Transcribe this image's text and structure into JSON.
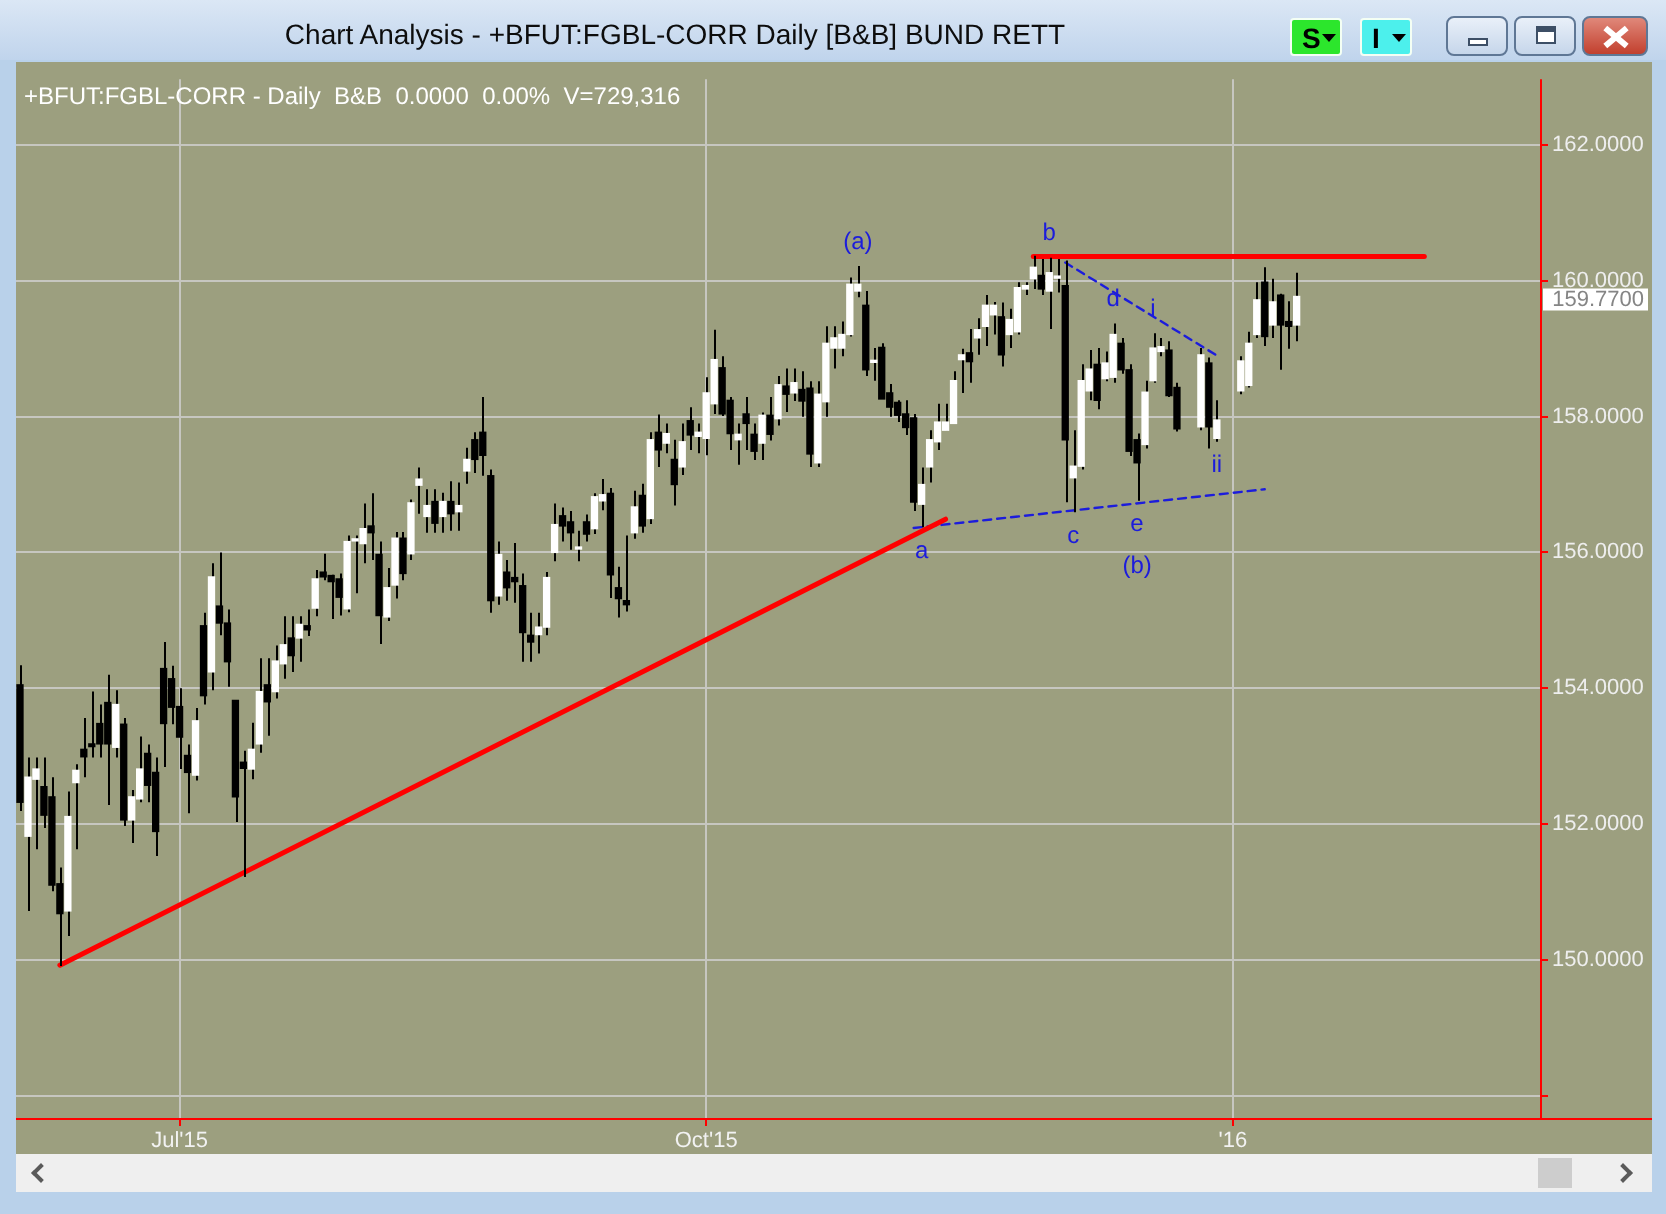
{
  "chart_data": {
    "type": "candlestick",
    "title": "Chart Analysis - +BFUT:FGBL-CORR Daily [B&B] BUND RETT",
    "subtitle": "+BFUT:FGBL-CORR - Daily  B&B  0.0000  0.00%  V=729,316",
    "categories": [
      null,
      null,
      null,
      null,
      null,
      null,
      null,
      null,
      null,
      null,
      null,
      null,
      null,
      null,
      null,
      null,
      null,
      null,
      null,
      null,
      "Jul'15",
      null,
      null,
      null,
      null,
      null,
      null,
      null,
      null,
      null,
      null,
      null,
      null,
      null,
      null,
      null,
      null,
      null,
      null,
      null,
      null,
      null,
      null,
      null,
      null,
      null,
      null,
      null,
      null,
      null,
      null,
      null,
      null,
      null,
      null,
      null,
      null,
      null,
      null,
      null,
      null,
      null,
      null,
      null,
      null,
      null,
      null,
      null,
      null,
      null,
      null,
      null,
      null,
      null,
      null,
      null,
      null,
      null,
      null,
      null,
      null,
      null,
      null,
      null,
      null,
      null,
      "Oct'15",
      null,
      null,
      null,
      null,
      null,
      null,
      null,
      null,
      null,
      null,
      null,
      null,
      null,
      null,
      null,
      null,
      null,
      null,
      null,
      null,
      null,
      null,
      null,
      null,
      null,
      null,
      null,
      null,
      null,
      null,
      null,
      null,
      null,
      null,
      null,
      null,
      null,
      null,
      null,
      null,
      null,
      null,
      null,
      null,
      null,
      null,
      null,
      null,
      null,
      null,
      null,
      null,
      null,
      null,
      null,
      null,
      null,
      null,
      null,
      null,
      null,
      null,
      null,
      null,
      null,
      "'16",
      null,
      null,
      null,
      null,
      null,
      null,
      null,
      null,
      null,
      null,
      null,
      null,
      null,
      null,
      null,
      null,
      null,
      null,
      null,
      null,
      null,
      null,
      null,
      null,
      null,
      null,
      null,
      null,
      null,
      null,
      null,
      null,
      null,
      null,
      null,
      null,
      null,
      null
    ],
    "ohlc": [
      [
        154.05,
        154.34,
        152.19,
        152.32
      ],
      [
        151.82,
        152.98,
        150.72,
        152.69
      ],
      [
        152.66,
        152.98,
        151.63,
        152.81
      ],
      [
        152.55,
        152.98,
        151.94,
        152.13
      ],
      [
        152.4,
        152.69,
        151.01,
        151.1
      ],
      [
        151.12,
        151.36,
        149.91,
        150.68
      ],
      [
        150.72,
        152.48,
        150.35,
        152.11
      ],
      [
        152.61,
        152.88,
        151.63,
        152.79
      ],
      [
        153.1,
        153.56,
        152.69,
        152.99
      ],
      [
        153.18,
        153.95,
        152.98,
        153.14
      ],
      [
        153.48,
        153.76,
        152.98,
        153.18
      ],
      [
        153.79,
        154.2,
        152.28,
        153.18
      ],
      [
        153.13,
        153.97,
        152.98,
        153.76
      ],
      [
        153.47,
        153.56,
        151.97,
        152.06
      ],
      [
        152.06,
        152.5,
        151.72,
        152.4
      ],
      [
        152.37,
        153.29,
        152.32,
        152.81
      ],
      [
        153.04,
        153.17,
        152.32,
        152.57
      ],
      [
        152.76,
        152.98,
        151.53,
        151.89
      ],
      [
        154.29,
        154.68,
        152.84,
        153.48
      ],
      [
        154.14,
        154.33,
        153.47,
        153.72
      ],
      [
        153.73,
        154.0,
        152.81,
        153.28
      ],
      [
        153.01,
        153.17,
        152.16,
        152.76
      ],
      [
        152.72,
        153.71,
        152.64,
        153.52
      ],
      [
        154.92,
        155.11,
        153.76,
        153.89
      ],
      [
        154.24,
        155.84,
        153.97,
        155.64
      ],
      [
        155.21,
        156.0,
        154.78,
        154.96
      ],
      [
        154.96,
        155.16,
        154.02,
        154.39
      ],
      [
        153.82,
        153.82,
        152.03,
        152.4
      ],
      [
        152.91,
        153.08,
        151.22,
        152.82
      ],
      [
        152.81,
        153.49,
        152.66,
        153.1
      ],
      [
        153.18,
        154.44,
        153.05,
        153.95
      ],
      [
        154.05,
        154.44,
        153.3,
        153.8
      ],
      [
        153.95,
        154.63,
        153.85,
        154.4
      ],
      [
        154.36,
        155.06,
        154.14,
        154.64
      ],
      [
        154.74,
        155.06,
        154.24,
        154.48
      ],
      [
        154.74,
        155.06,
        154.39,
        154.94
      ],
      [
        154.92,
        155.16,
        154.77,
        154.86
      ],
      [
        155.18,
        155.74,
        155.06,
        155.61
      ],
      [
        155.71,
        155.98,
        155.59,
        155.64
      ],
      [
        155.66,
        155.67,
        155.02,
        155.57
      ],
      [
        155.61,
        155.69,
        155.07,
        155.34
      ],
      [
        155.17,
        156.25,
        155.12,
        156.16
      ],
      [
        156.17,
        156.25,
        155.4,
        156.18
      ],
      [
        156.13,
        156.72,
        155.84,
        156.35
      ],
      [
        156.39,
        156.87,
        155.89,
        156.29
      ],
      [
        155.97,
        156.16,
        154.65,
        155.07
      ],
      [
        155.05,
        155.77,
        154.99,
        155.48
      ],
      [
        155.52,
        156.3,
        155.32,
        156.21
      ],
      [
        156.21,
        156.3,
        155.59,
        155.69
      ],
      [
        155.98,
        156.78,
        155.89,
        156.73
      ],
      [
        156.99,
        157.25,
        156.57,
        157.08
      ],
      [
        156.53,
        156.93,
        156.29,
        156.69
      ],
      [
        156.75,
        156.93,
        156.29,
        156.43
      ],
      [
        156.53,
        156.88,
        156.29,
        156.75
      ],
      [
        156.75,
        157.05,
        156.32,
        156.57
      ],
      [
        156.6,
        157.03,
        156.32,
        156.69
      ],
      [
        157.2,
        157.54,
        157.01,
        157.37
      ],
      [
        157.66,
        157.77,
        157.17,
        157.37
      ],
      [
        157.77,
        158.29,
        157.13,
        157.43
      ],
      [
        157.13,
        157.22,
        155.11,
        155.29
      ],
      [
        155.36,
        156.16,
        155.23,
        155.97
      ],
      [
        155.71,
        155.89,
        155.29,
        155.48
      ],
      [
        155.63,
        156.14,
        155.26,
        155.57
      ],
      [
        155.51,
        155.69,
        154.39,
        154.82
      ],
      [
        154.78,
        155.11,
        154.39,
        154.68
      ],
      [
        154.79,
        155.11,
        154.51,
        154.9
      ],
      [
        154.9,
        155.71,
        154.78,
        155.63
      ],
      [
        156.0,
        156.72,
        155.87,
        156.41
      ],
      [
        156.54,
        156.66,
        156.16,
        156.39
      ],
      [
        156.45,
        156.61,
        156.04,
        156.29
      ],
      [
        156.05,
        156.32,
        155.87,
        156.07
      ],
      [
        156.45,
        156.56,
        156.16,
        156.27
      ],
      [
        156.35,
        156.87,
        156.27,
        156.82
      ],
      [
        156.76,
        157.08,
        156.62,
        156.85
      ],
      [
        156.87,
        156.95,
        155.33,
        155.67
      ],
      [
        155.48,
        155.79,
        155.04,
        155.32
      ],
      [
        155.29,
        156.25,
        155.13,
        155.23
      ],
      [
        156.29,
        156.91,
        156.2,
        156.67
      ],
      [
        156.84,
        157.01,
        156.29,
        156.39
      ],
      [
        156.5,
        157.77,
        156.42,
        157.66
      ],
      [
        157.77,
        158.03,
        157.26,
        157.51
      ],
      [
        157.61,
        157.9,
        157.46,
        157.75
      ],
      [
        157.37,
        157.66,
        156.69,
        157.0
      ],
      [
        157.26,
        157.9,
        157.14,
        157.63
      ],
      [
        157.94,
        158.14,
        157.51,
        157.73
      ],
      [
        157.71,
        157.9,
        157.46,
        157.77
      ],
      [
        157.68,
        158.58,
        157.43,
        158.35
      ],
      [
        158.19,
        159.28,
        158.04,
        158.84
      ],
      [
        158.72,
        158.89,
        158.01,
        158.04
      ],
      [
        158.24,
        158.29,
        157.51,
        157.75
      ],
      [
        157.66,
        157.9,
        157.29,
        157.74
      ],
      [
        158.04,
        158.29,
        157.51,
        157.9
      ],
      [
        157.74,
        157.9,
        157.36,
        157.49
      ],
      [
        157.61,
        158.06,
        157.36,
        158.02
      ],
      [
        158.02,
        158.29,
        157.65,
        157.74
      ],
      [
        157.97,
        158.6,
        157.87,
        158.47
      ],
      [
        158.45,
        158.71,
        158.07,
        158.33
      ],
      [
        158.35,
        158.71,
        158.23,
        158.5
      ],
      [
        158.4,
        158.67,
        158.0,
        158.23
      ],
      [
        158.42,
        158.52,
        157.26,
        157.45
      ],
      [
        157.32,
        158.52,
        157.26,
        158.33
      ],
      [
        158.22,
        159.33,
        158.0,
        159.08
      ],
      [
        159.01,
        159.33,
        158.71,
        159.16
      ],
      [
        159.01,
        159.4,
        158.89,
        159.21
      ],
      [
        159.21,
        160.05,
        159.18,
        159.95
      ],
      [
        159.85,
        160.22,
        159.76,
        159.95
      ],
      [
        159.64,
        159.85,
        158.6,
        158.69
      ],
      [
        158.8,
        159.01,
        158.53,
        158.82
      ],
      [
        159.02,
        159.08,
        158.26,
        158.26
      ],
      [
        158.35,
        158.48,
        158.0,
        158.14
      ],
      [
        158.21,
        158.24,
        157.92,
        158.02
      ],
      [
        158.04,
        158.24,
        157.73,
        157.84
      ],
      [
        157.98,
        158.04,
        156.61,
        156.74
      ],
      [
        156.71,
        157.25,
        156.37,
        157.0
      ],
      [
        157.26,
        157.8,
        157.03,
        157.66
      ],
      [
        157.63,
        158.19,
        157.51,
        157.92
      ],
      [
        157.8,
        158.19,
        157.8,
        157.92
      ],
      [
        157.9,
        158.67,
        157.9,
        158.53
      ],
      [
        158.84,
        159.0,
        158.35,
        158.91
      ],
      [
        158.94,
        159.29,
        158.5,
        158.81
      ],
      [
        159.16,
        159.45,
        158.91,
        159.28
      ],
      [
        159.33,
        159.79,
        159.04,
        159.64
      ],
      [
        159.5,
        159.69,
        159.21,
        159.64
      ],
      [
        159.47,
        159.68,
        158.74,
        158.91
      ],
      [
        159.21,
        159.59,
        159.01,
        159.43
      ],
      [
        159.25,
        159.98,
        159.21,
        159.9
      ],
      [
        159.88,
        159.98,
        159.79,
        159.93
      ],
      [
        160.03,
        160.37,
        159.88,
        160.2
      ],
      [
        160.08,
        160.32,
        159.79,
        159.88
      ],
      [
        159.85,
        160.34,
        159.29,
        160.12
      ],
      [
        160.04,
        160.32,
        159.83,
        160.07
      ],
      [
        159.93,
        160.3,
        156.74,
        157.66
      ],
      [
        157.1,
        157.8,
        156.59,
        157.27
      ],
      [
        157.27,
        158.77,
        157.22,
        158.53
      ],
      [
        158.38,
        158.98,
        158.24,
        158.7
      ],
      [
        158.77,
        159.01,
        158.11,
        158.24
      ],
      [
        158.56,
        158.96,
        158.52,
        158.79
      ],
      [
        158.58,
        159.37,
        158.5,
        159.21
      ],
      [
        159.08,
        159.16,
        158.63,
        158.69
      ],
      [
        158.69,
        158.77,
        157.42,
        157.49
      ],
      [
        157.66,
        157.75,
        156.76,
        157.32
      ],
      [
        157.59,
        158.53,
        157.53,
        158.36
      ],
      [
        158.53,
        159.23,
        158.5,
        159.01
      ],
      [
        158.96,
        159.16,
        158.89,
        159.03
      ],
      [
        158.98,
        159.11,
        158.29,
        158.31
      ],
      [
        158.43,
        158.5,
        157.78,
        157.82
      ],
      null,
      null,
      [
        157.85,
        159.01,
        157.8,
        158.91
      ],
      [
        158.79,
        158.87,
        157.53,
        157.85
      ],
      [
        157.68,
        158.24,
        157.63,
        157.95
      ],
      null,
      null,
      [
        158.38,
        158.89,
        158.33,
        158.82
      ],
      [
        158.46,
        159.25,
        158.43,
        159.08
      ],
      [
        159.21,
        159.98,
        159.16,
        159.72
      ],
      [
        159.98,
        160.2,
        159.04,
        159.18
      ],
      [
        159.35,
        160.03,
        159.16,
        159.69
      ],
      [
        159.79,
        159.81,
        158.69,
        159.35
      ],
      [
        159.4,
        159.7,
        159.0,
        159.33
      ],
      [
        159.35,
        160.12,
        159.11,
        159.77
      ],
      null,
      null,
      null,
      null,
      null,
      null,
      null,
      null,
      null,
      null,
      null,
      null,
      null,
      null,
      null,
      null,
      null,
      null,
      null,
      null,
      null,
      null,
      null,
      null,
      null,
      null,
      null,
      null,
      null,
      null
    ],
    "series": [
      {
        "type": "line",
        "color": "#ff0000",
        "line_style": "solid",
        "values": [
          null,
          null,
          null,
          null,
          null,
          149.92,
          null,
          null,
          null,
          null,
          null,
          null,
          null,
          null,
          null,
          null,
          null,
          null,
          null,
          null,
          null,
          null,
          null,
          null,
          null,
          null,
          null,
          null,
          null,
          null,
          null,
          null,
          null,
          null,
          null,
          null,
          null,
          null,
          null,
          null,
          null,
          null,
          null,
          null,
          null,
          null,
          null,
          null,
          null,
          null,
          null,
          null,
          null,
          null,
          null,
          null,
          null,
          null,
          null,
          null,
          null,
          null,
          null,
          null,
          null,
          null,
          null,
          null,
          null,
          null,
          null,
          null,
          null,
          null,
          null,
          null,
          null,
          null,
          null,
          null,
          null,
          null,
          null,
          null,
          null,
          null,
          null,
          null,
          null,
          null,
          null,
          null,
          null,
          null,
          null,
          null,
          null,
          null,
          null,
          null,
          null,
          null,
          null,
          null,
          null,
          null,
          null,
          null,
          null,
          null,
          null,
          null,
          null,
          null,
          null,
          null,
          156.49,
          null,
          null,
          null,
          null,
          null,
          null,
          null,
          null,
          null,
          null,
          null,
          null,
          null,
          null,
          null,
          null,
          null,
          null,
          null,
          null,
          null,
          null,
          null,
          null,
          null,
          null,
          null,
          null,
          null,
          null,
          null,
          null,
          null,
          null,
          null,
          null,
          null,
          null,
          null,
          null,
          null,
          null,
          null,
          null,
          null,
          null,
          null,
          null,
          null,
          null,
          null,
          null,
          null,
          null,
          null,
          null,
          null,
          null,
          null,
          null,
          null,
          null,
          null,
          null,
          null,
          null,
          null,
          null,
          null,
          null,
          null,
          null,
          null,
          null
        ]
      },
      {
        "type": "line",
        "color": "#ff0000",
        "line_style": "solid",
        "values": [
          null,
          null,
          null,
          null,
          null,
          null,
          null,
          null,
          null,
          null,
          null,
          null,
          null,
          null,
          null,
          null,
          null,
          null,
          null,
          null,
          null,
          null,
          null,
          null,
          null,
          null,
          null,
          null,
          null,
          null,
          null,
          null,
          null,
          null,
          null,
          null,
          null,
          null,
          null,
          null,
          null,
          null,
          null,
          null,
          null,
          null,
          null,
          null,
          null,
          null,
          null,
          null,
          null,
          null,
          null,
          null,
          null,
          null,
          null,
          null,
          null,
          null,
          null,
          null,
          null,
          null,
          null,
          null,
          null,
          null,
          null,
          null,
          null,
          null,
          null,
          null,
          null,
          null,
          null,
          null,
          null,
          null,
          null,
          null,
          null,
          null,
          null,
          null,
          null,
          null,
          null,
          null,
          null,
          null,
          null,
          null,
          null,
          null,
          null,
          null,
          null,
          null,
          null,
          null,
          null,
          null,
          null,
          null,
          null,
          null,
          null,
          null,
          null,
          null,
          null,
          null,
          null,
          null,
          null,
          null,
          null,
          null,
          null,
          null,
          null,
          null,
          null,
          160.36,
          null,
          null,
          null,
          null,
          null,
          null,
          null,
          null,
          null,
          null,
          null,
          null,
          null,
          null,
          null,
          null,
          null,
          null,
          null,
          null,
          null,
          null,
          null,
          null,
          null,
          null,
          null,
          null,
          null,
          null,
          null,
          null,
          null,
          null,
          null,
          null,
          null,
          null,
          null,
          null,
          null,
          null,
          null,
          null,
          null,
          null,
          null,
          null,
          160.36,
          null,
          null,
          null,
          null,
          null,
          null,
          null,
          null,
          null,
          null,
          null,
          null,
          null,
          null
        ]
      },
      {
        "type": "line",
        "color": "#1c1cdc",
        "line_style": "dashed",
        "values": [
          null,
          null,
          null,
          null,
          null,
          null,
          null,
          null,
          null,
          null,
          null,
          null,
          null,
          null,
          null,
          null,
          null,
          null,
          null,
          null,
          null,
          null,
          null,
          null,
          null,
          null,
          null,
          null,
          null,
          null,
          null,
          null,
          null,
          null,
          null,
          null,
          null,
          null,
          null,
          null,
          null,
          null,
          null,
          null,
          null,
          null,
          null,
          null,
          null,
          null,
          null,
          null,
          null,
          null,
          null,
          null,
          null,
          null,
          null,
          null,
          null,
          null,
          null,
          null,
          null,
          null,
          null,
          null,
          null,
          null,
          null,
          null,
          null,
          null,
          null,
          null,
          null,
          null,
          null,
          null,
          null,
          null,
          null,
          null,
          null,
          null,
          null,
          null,
          null,
          null,
          null,
          null,
          null,
          null,
          null,
          null,
          null,
          null,
          null,
          null,
          null,
          null,
          null,
          null,
          null,
          null,
          null,
          null,
          null,
          null,
          null,
          null,
          156.36,
          null,
          null,
          null,
          null,
          null,
          null,
          null,
          null,
          null,
          null,
          null,
          null,
          null,
          null,
          null,
          null,
          null,
          null,
          null,
          null,
          null,
          null,
          null,
          null,
          null,
          null,
          null,
          null,
          null,
          null,
          null,
          null,
          null,
          null,
          null,
          null,
          null,
          null,
          null,
          null,
          null,
          null,
          null,
          156.93,
          null,
          null,
          null,
          null,
          null,
          null,
          null,
          null,
          null,
          null,
          null,
          null,
          null,
          null,
          null,
          null,
          null,
          null,
          null,
          null,
          null,
          null,
          null,
          null,
          null,
          null,
          null,
          null,
          null,
          null,
          null,
          null,
          null,
          null
        ]
      },
      {
        "type": "line",
        "color": "#1c1cdc",
        "line_style": "dashed",
        "values": [
          null,
          null,
          null,
          null,
          null,
          null,
          null,
          null,
          null,
          null,
          null,
          null,
          null,
          null,
          null,
          null,
          null,
          null,
          null,
          null,
          null,
          null,
          null,
          null,
          null,
          null,
          null,
          null,
          null,
          null,
          null,
          null,
          null,
          null,
          null,
          null,
          null,
          null,
          null,
          null,
          null,
          null,
          null,
          null,
          null,
          null,
          null,
          null,
          null,
          null,
          null,
          null,
          null,
          null,
          null,
          null,
          null,
          null,
          null,
          null,
          null,
          null,
          null,
          null,
          null,
          null,
          null,
          null,
          null,
          null,
          null,
          null,
          null,
          null,
          null,
          null,
          null,
          null,
          null,
          null,
          null,
          null,
          null,
          null,
          null,
          null,
          null,
          null,
          null,
          null,
          null,
          null,
          null,
          null,
          null,
          null,
          null,
          null,
          null,
          null,
          null,
          null,
          null,
          null,
          null,
          null,
          null,
          null,
          null,
          null,
          null,
          null,
          null,
          null,
          null,
          null,
          null,
          null,
          null,
          null,
          null,
          null,
          null,
          null,
          null,
          null,
          null,
          null,
          null,
          null,
          null,
          160.27,
          null,
          null,
          null,
          null,
          null,
          null,
          null,
          null,
          null,
          null,
          null,
          null,
          null,
          null,
          null,
          null,
          null,
          null,
          158.9,
          null,
          null,
          null,
          null,
          null,
          null,
          null,
          null,
          null,
          null,
          null,
          null,
          null,
          null,
          null,
          null,
          null,
          null,
          null,
          null,
          null,
          null,
          null,
          null,
          null,
          null,
          null,
          null,
          null,
          null,
          null,
          null,
          null,
          null,
          null,
          null,
          null,
          null,
          null,
          null
        ]
      }
    ],
    "ylim": [
      147.67,
      162.97
    ],
    "yticks": [
      {
        "value": 148,
        "label": null
      },
      {
        "value": 150,
        "label": "150.0000"
      },
      {
        "value": 152,
        "label": "152.0000"
      },
      {
        "value": 154,
        "label": "154.0000"
      },
      {
        "value": 156,
        "label": "156.0000"
      },
      {
        "value": 158,
        "label": "158.0000"
      },
      {
        "value": 160,
        "label": "160.0000"
      },
      {
        "value": 162,
        "label": "162.0000"
      }
    ],
    "grid": true,
    "annotations": [
      {
        "text": "(a)",
        "y": 160.22
      },
      {
        "text": "a",
        "y": 156.37
      },
      {
        "text": "b",
        "y": 160.34
      },
      {
        "text": "c",
        "y": 156.59
      },
      {
        "text": "d",
        "y": 159.37
      },
      {
        "text": "i",
        "y": 159.23
      },
      {
        "text": "e",
        "y": 156.76
      },
      {
        "text": "(b)",
        "y": 156.76
      },
      {
        "text": "ii",
        "y": 157.63
      },
      "159.7700",
      "S",
      "I"
    ]
  }
}
